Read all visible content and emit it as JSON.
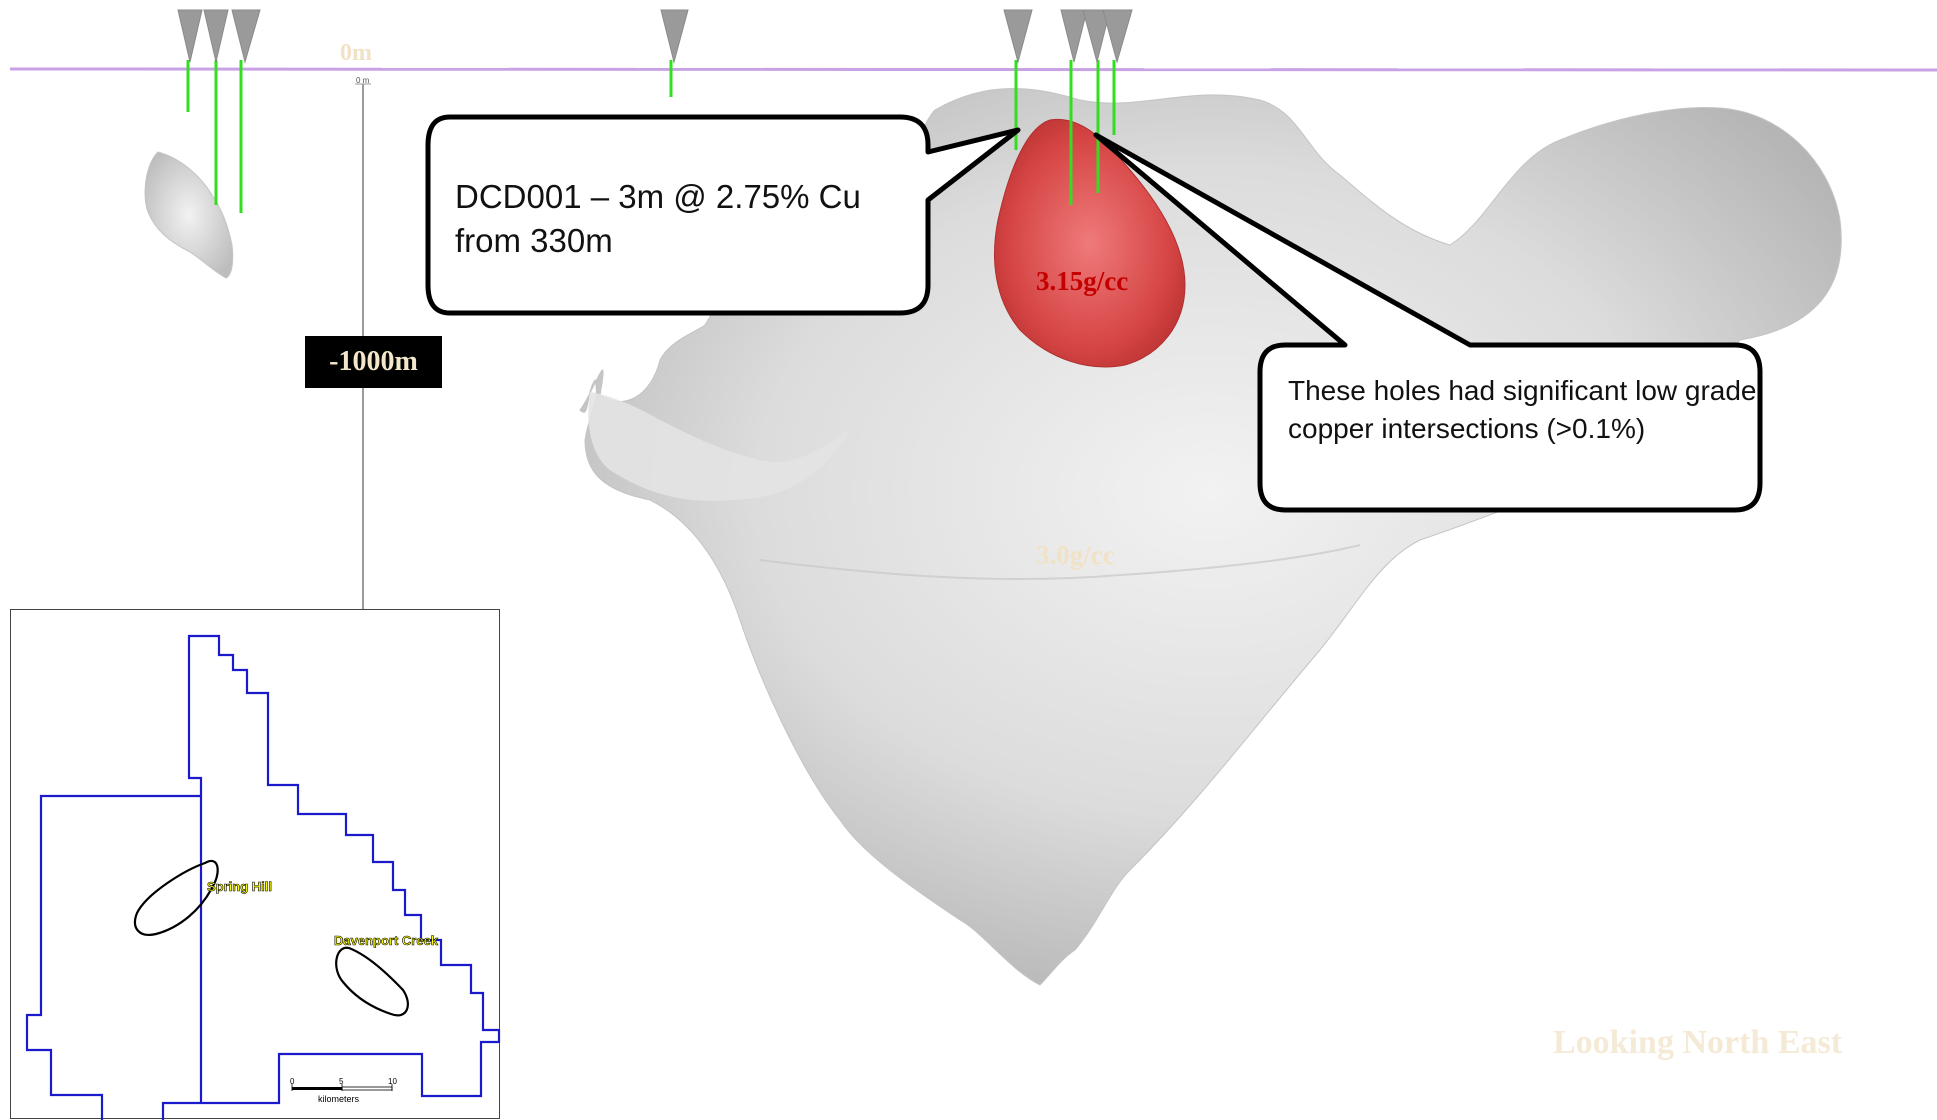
{
  "section": {
    "surface_label": "0m",
    "surface_label_small": "0 m",
    "depth_label": "-1000m",
    "view_label": "Looking North East",
    "high_density_label": "3.15g/cc",
    "body_density_label": "3.0g/cc",
    "callout_intercept": "DCD001 – 3m @ 2.75% Cu from 330m",
    "callout_holes": "These holes had significant low grade  copper intersections (>0.1%)",
    "colors": {
      "surface_line": "#c9a2e6",
      "drill_trace": "#33dd22",
      "collar_marker": "#9a9a9a",
      "body": "#d9d9d9",
      "high_density": "#d64545"
    }
  },
  "inset_map": {
    "labels": {
      "spring_hill": "Spring Hill",
      "davenport_creek": "Davenport Creek"
    },
    "scale": {
      "unit": "kilometers",
      "ticks": [
        "0",
        "5",
        "10"
      ]
    },
    "colors": {
      "tenement_boundary": "#1a1acc",
      "prospect_outline": "#000000"
    }
  }
}
